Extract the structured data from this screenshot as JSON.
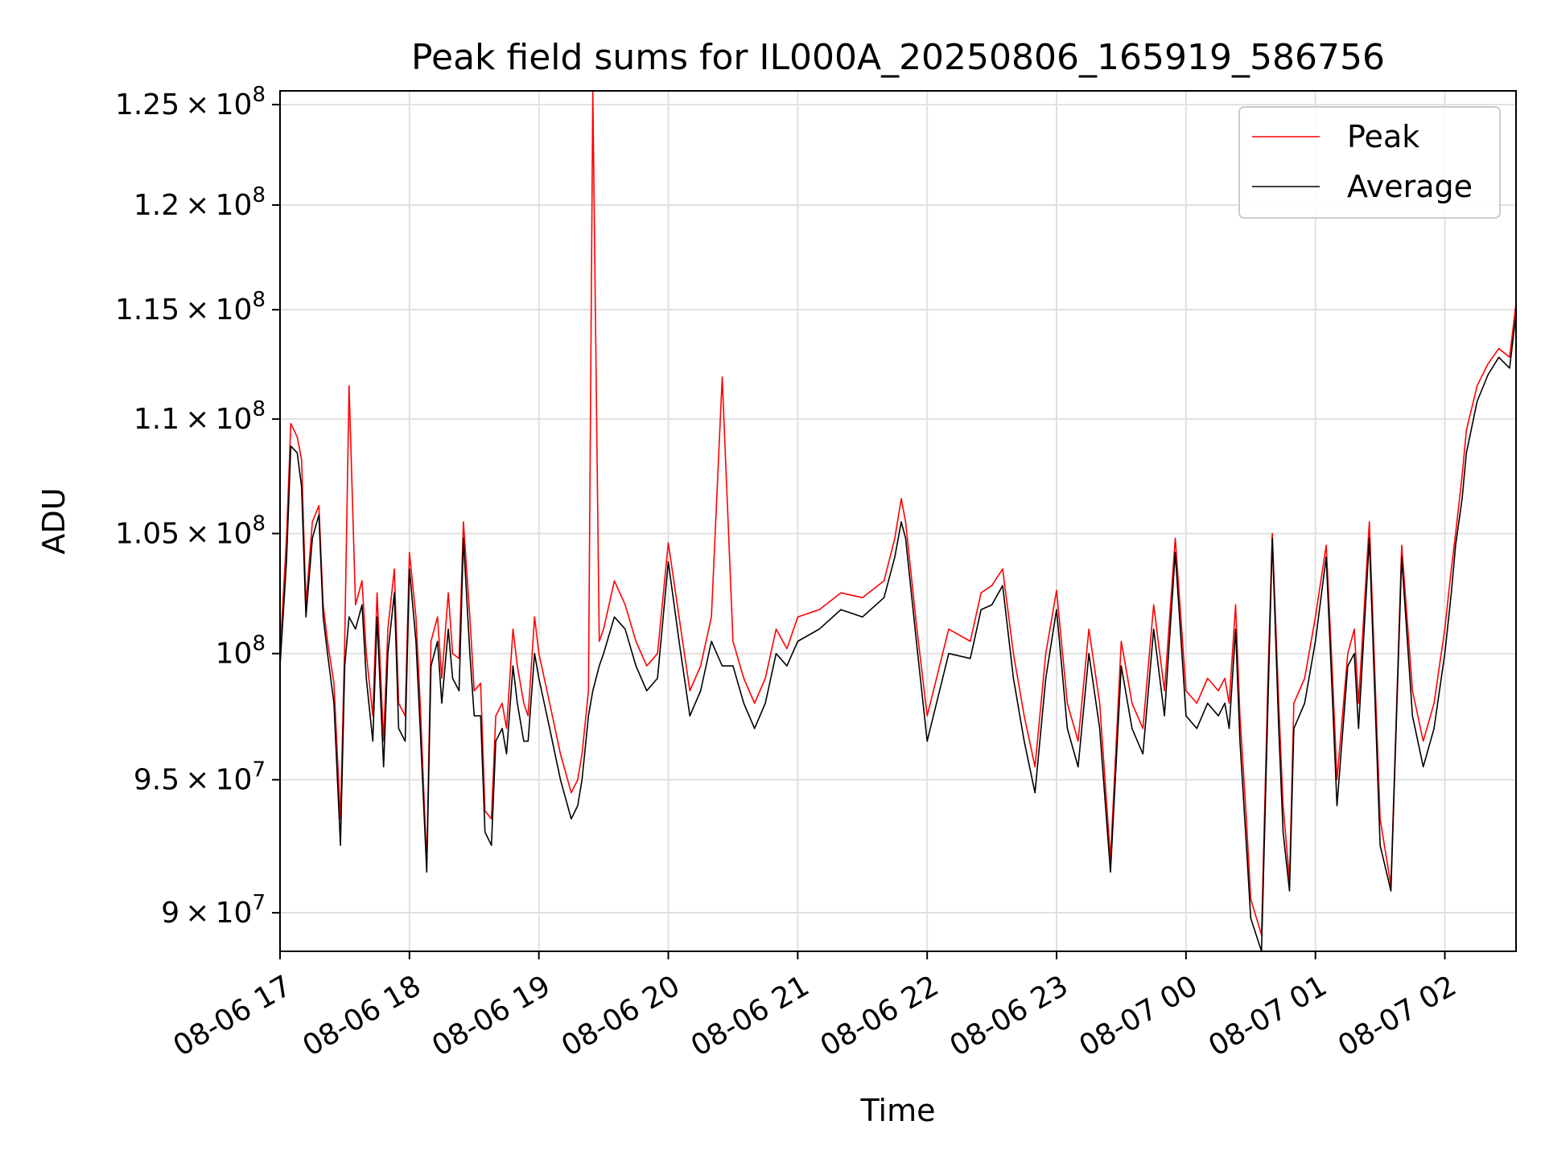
{
  "chart_data": {
    "type": "line",
    "title": "Peak field sums for IL000A_20250806_165919_586756",
    "xlabel": "Time",
    "ylabel": "ADU",
    "x_axis": {
      "kind": "date",
      "range": [
        "2025-08-06 17:00",
        "2025-08-07 02:33"
      ],
      "tick_labels": [
        "08-06 17",
        "08-06 18",
        "08-06 19",
        "08-06 20",
        "08-06 21",
        "08-06 22",
        "08-06 23",
        "08-07 00",
        "08-07 01",
        "08-07 02"
      ]
    },
    "y_axis": {
      "scale": "log",
      "range": [
        88600000,
        125700000
      ],
      "tick_values": [
        90000000,
        95000000,
        100000000,
        105000000,
        110000000,
        115000000,
        120000000,
        125000000
      ],
      "tick_labels": [
        {
          "mant": "9",
          "exp": "7"
        },
        {
          "mant": "9.5",
          "exp": "7"
        },
        {
          "mant": "",
          "exp": "8"
        },
        {
          "mant": "1.05",
          "exp": "8"
        },
        {
          "mant": "1.1",
          "exp": "8"
        },
        {
          "mant": "1.15",
          "exp": "8"
        },
        {
          "mant": "1.2",
          "exp": "8"
        },
        {
          "mant": "1.25",
          "exp": "8"
        }
      ]
    },
    "grid": true,
    "legend_position": "top-right",
    "series": [
      {
        "name": "Peak",
        "color": "#ff0000",
        "x": [
          "17:00",
          "17:03",
          "17:05",
          "17:08",
          "17:10",
          "17:12",
          "17:15",
          "17:18",
          "17:20",
          "17:22",
          "17:25",
          "17:28",
          "17:30",
          "17:32",
          "17:35",
          "17:38",
          "17:40",
          "17:43",
          "17:45",
          "17:48",
          "17:50",
          "17:53",
          "17:55",
          "17:58",
          "18:00",
          "18:03",
          "18:05",
          "18:08",
          "18:10",
          "18:13",
          "18:15",
          "18:18",
          "18:20",
          "18:23",
          "18:25",
          "18:28",
          "18:30",
          "18:33",
          "18:35",
          "18:38",
          "18:40",
          "18:43",
          "18:45",
          "18:48",
          "18:50",
          "18:53",
          "18:55",
          "18:58",
          "19:00",
          "19:05",
          "19:10",
          "19:15",
          "19:18",
          "19:20",
          "19:23",
          "19:25",
          "19:28",
          "19:30",
          "19:35",
          "19:40",
          "19:45",
          "19:50",
          "19:55",
          "20:00",
          "20:05",
          "20:10",
          "20:15",
          "20:20",
          "20:25",
          "20:30",
          "20:35",
          "20:40",
          "20:45",
          "20:50",
          "20:55",
          "21:00",
          "21:10",
          "21:20",
          "21:30",
          "21:40",
          "21:45",
          "21:48",
          "21:50",
          "21:55",
          "22:00",
          "22:10",
          "22:20",
          "22:25",
          "22:30",
          "22:35",
          "22:40",
          "22:45",
          "22:50",
          "22:55",
          "23:00",
          "23:05",
          "23:10",
          "23:15",
          "23:20",
          "23:25",
          "23:30",
          "23:35",
          "23:40",
          "23:45",
          "23:50",
          "23:55",
          "00:00",
          "00:05",
          "00:10",
          "00:15",
          "00:18",
          "00:20",
          "00:23",
          "00:25",
          "00:28",
          "00:30",
          "00:35",
          "00:38",
          "00:40",
          "00:43",
          "00:45",
          "00:48",
          "00:50",
          "00:55",
          "01:00",
          "01:05",
          "01:08",
          "01:10",
          "01:15",
          "01:18",
          "01:20",
          "01:25",
          "01:30",
          "01:35",
          "01:40",
          "01:45",
          "01:50",
          "01:55",
          "02:00",
          "02:03",
          "02:05",
          "02:08",
          "02:10",
          "02:15",
          "02:20",
          "02:25",
          "02:30",
          "02:33"
        ],
        "values": [
          100000000,
          104800000,
          109800000,
          109200000,
          108200000,
          102000000,
          105500000,
          106200000,
          102000000,
          100500000,
          98800000,
          93500000,
          100500000,
          111500000,
          102000000,
          103000000,
          100000000,
          97500000,
          102500000,
          96500000,
          101000000,
          103500000,
          98000000,
          97500000,
          104200000,
          101500000,
          98000000,
          91800000,
          100500000,
          101500000,
          99000000,
          102500000,
          100000000,
          99800000,
          105500000,
          101500000,
          98500000,
          98800000,
          93800000,
          93500000,
          97500000,
          98000000,
          97000000,
          101000000,
          99500000,
          98000000,
          97500000,
          101500000,
          100000000,
          98000000,
          96000000,
          94500000,
          95000000,
          96000000,
          98500000,
          125700000,
          100500000,
          101000000,
          103000000,
          102000000,
          100500000,
          99500000,
          100000000,
          104600000,
          101500000,
          98500000,
          99500000,
          101500000,
          111900000,
          100500000,
          99000000,
          98000000,
          99000000,
          101000000,
          100200000,
          101500000,
          101800000,
          102500000,
          102300000,
          103000000,
          104800000,
          106500000,
          105500000,
          101200000,
          97500000,
          101000000,
          100500000,
          102500000,
          102800000,
          103500000,
          100000000,
          97500000,
          95500000,
          100000000,
          102600000,
          98000000,
          96500000,
          101000000,
          98000000,
          92000000,
          100500000,
          98000000,
          97000000,
          102000000,
          98500000,
          104800000,
          98500000,
          98000000,
          99000000,
          98500000,
          99000000,
          98000000,
          102000000,
          97500000,
          93500000,
          90500000,
          89200000,
          99000000,
          105000000,
          98000000,
          94000000,
          91200000,
          98000000,
          99000000,
          101500000,
          104500000,
          99000000,
          95000000,
          100000000,
          101000000,
          98000000,
          105500000,
          93500000,
          91000000,
          104500000,
          98500000,
          96500000,
          98000000,
          101000000,
          103500000,
          105000000,
          107500000,
          109500000,
          111500000,
          112500000,
          113200000,
          112800000,
          115300000
        ]
      },
      {
        "name": "Average",
        "color": "#000000",
        "x": [
          "17:00",
          "17:03",
          "17:05",
          "17:08",
          "17:10",
          "17:12",
          "17:15",
          "17:18",
          "17:20",
          "17:22",
          "17:25",
          "17:28",
          "17:30",
          "17:32",
          "17:35",
          "17:38",
          "17:40",
          "17:43",
          "17:45",
          "17:48",
          "17:50",
          "17:53",
          "17:55",
          "17:58",
          "18:00",
          "18:03",
          "18:05",
          "18:08",
          "18:10",
          "18:13",
          "18:15",
          "18:18",
          "18:20",
          "18:23",
          "18:25",
          "18:28",
          "18:30",
          "18:33",
          "18:35",
          "18:38",
          "18:40",
          "18:43",
          "18:45",
          "18:48",
          "18:50",
          "18:53",
          "18:55",
          "18:58",
          "19:00",
          "19:05",
          "19:10",
          "19:15",
          "19:18",
          "19:20",
          "19:23",
          "19:25",
          "19:28",
          "19:30",
          "19:35",
          "19:40",
          "19:45",
          "19:50",
          "19:55",
          "20:00",
          "20:05",
          "20:10",
          "20:15",
          "20:20",
          "20:25",
          "20:30",
          "20:35",
          "20:40",
          "20:45",
          "20:50",
          "20:55",
          "21:00",
          "21:10",
          "21:20",
          "21:30",
          "21:40",
          "21:45",
          "21:48",
          "21:50",
          "21:55",
          "22:00",
          "22:10",
          "22:20",
          "22:25",
          "22:30",
          "22:35",
          "22:40",
          "22:45",
          "22:50",
          "22:55",
          "23:00",
          "23:05",
          "23:10",
          "23:15",
          "23:20",
          "23:25",
          "23:30",
          "23:35",
          "23:40",
          "23:45",
          "23:50",
          "23:55",
          "00:00",
          "00:05",
          "00:10",
          "00:15",
          "00:18",
          "00:20",
          "00:23",
          "00:25",
          "00:28",
          "00:30",
          "00:35",
          "00:38",
          "00:40",
          "00:43",
          "00:45",
          "00:48",
          "00:50",
          "00:55",
          "01:00",
          "01:05",
          "01:08",
          "01:10",
          "01:15",
          "01:18",
          "01:20",
          "01:25",
          "01:30",
          "01:35",
          "01:40",
          "01:45",
          "01:50",
          "01:55",
          "02:00",
          "02:03",
          "02:05",
          "02:08",
          "02:10",
          "02:15",
          "02:20",
          "02:25",
          "02:30",
          "02:33"
        ],
        "values": [
          99500000,
          103800000,
          108800000,
          108500000,
          107000000,
          101500000,
          104800000,
          105800000,
          101500000,
          100000000,
          98000000,
          92500000,
          99500000,
          101500000,
          101000000,
          102000000,
          99000000,
          96500000,
          101500000,
          95500000,
          100000000,
          102500000,
          97000000,
          96500000,
          103500000,
          100500000,
          97000000,
          91500000,
          99500000,
          100500000,
          98000000,
          101000000,
          99000000,
          98500000,
          104800000,
          100000000,
          97500000,
          97500000,
          93000000,
          92500000,
          96500000,
          97000000,
          96000000,
          99500000,
          98000000,
          96500000,
          96500000,
          100000000,
          99000000,
          97000000,
          95000000,
          93500000,
          94000000,
          95000000,
          97500000,
          98500000,
          99500000,
          100000000,
          101500000,
          101000000,
          99500000,
          98500000,
          99000000,
          103800000,
          100500000,
          97500000,
          98500000,
          100500000,
          99500000,
          99500000,
          98000000,
          97000000,
          98000000,
          100000000,
          99500000,
          100500000,
          101000000,
          101800000,
          101500000,
          102300000,
          104000000,
          105500000,
          104800000,
          100500000,
          96500000,
          100000000,
          99800000,
          101800000,
          102000000,
          102800000,
          99000000,
          96500000,
          94500000,
          99000000,
          101800000,
          97000000,
          95500000,
          100000000,
          97000000,
          91500000,
          99500000,
          97000000,
          96000000,
          101000000,
          97500000,
          104200000,
          97500000,
          97000000,
          98000000,
          97500000,
          98000000,
          97000000,
          101000000,
          96500000,
          92500000,
          89800000,
          88600000,
          98000000,
          104800000,
          97000000,
          93000000,
          90800000,
          97000000,
          98000000,
          100500000,
          104000000,
          98000000,
          94000000,
          99500000,
          100000000,
          97000000,
          104800000,
          92500000,
          90800000,
          104000000,
          97500000,
          95500000,
          97000000,
          100000000,
          102500000,
          104500000,
          106500000,
          108500000,
          110800000,
          112000000,
          112800000,
          112300000,
          114800000
        ]
      }
    ]
  }
}
